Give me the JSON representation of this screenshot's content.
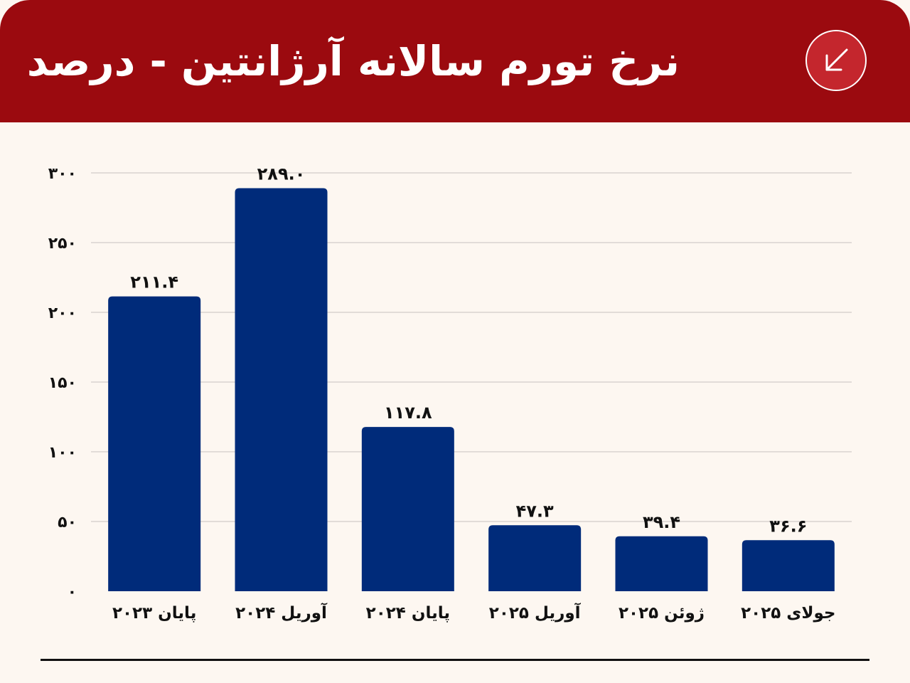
{
  "header": {
    "title": "نرخ تورم سالانه آرژانتین - درصد",
    "icon": "arrow-down-left-icon",
    "background_color": "#9b0a0f",
    "icon_background_color": "#c4262d"
  },
  "chart_data": {
    "type": "bar",
    "categories": [
      "پایان ۲۰۲۳",
      "آوریل ۲۰۲۴",
      "پایان ۲۰۲۴",
      "آوریل ۲۰۲۵",
      "ژوئن ۲۰۲۵",
      "جولای ۲۰۲۵"
    ],
    "values": [
      211.4,
      289.0,
      117.8,
      47.3,
      39.4,
      36.6
    ],
    "value_labels": [
      "۲۱۱.۴",
      "۲۸۹.۰",
      "۱۱۷.۸",
      "۴۷.۳",
      "۳۹.۴",
      "۳۶.۶"
    ],
    "yticks": [
      0,
      50,
      100,
      150,
      200,
      250,
      300
    ],
    "ytick_labels": [
      "۰",
      "۵۰",
      "۱۰۰",
      "۱۵۰",
      "۲۰۰",
      "۲۵۰",
      "۳۰۰"
    ],
    "ylim": [
      0,
      300
    ],
    "grid": true,
    "bar_color": "#002b7a",
    "title": "",
    "xlabel": "",
    "ylabel": ""
  }
}
